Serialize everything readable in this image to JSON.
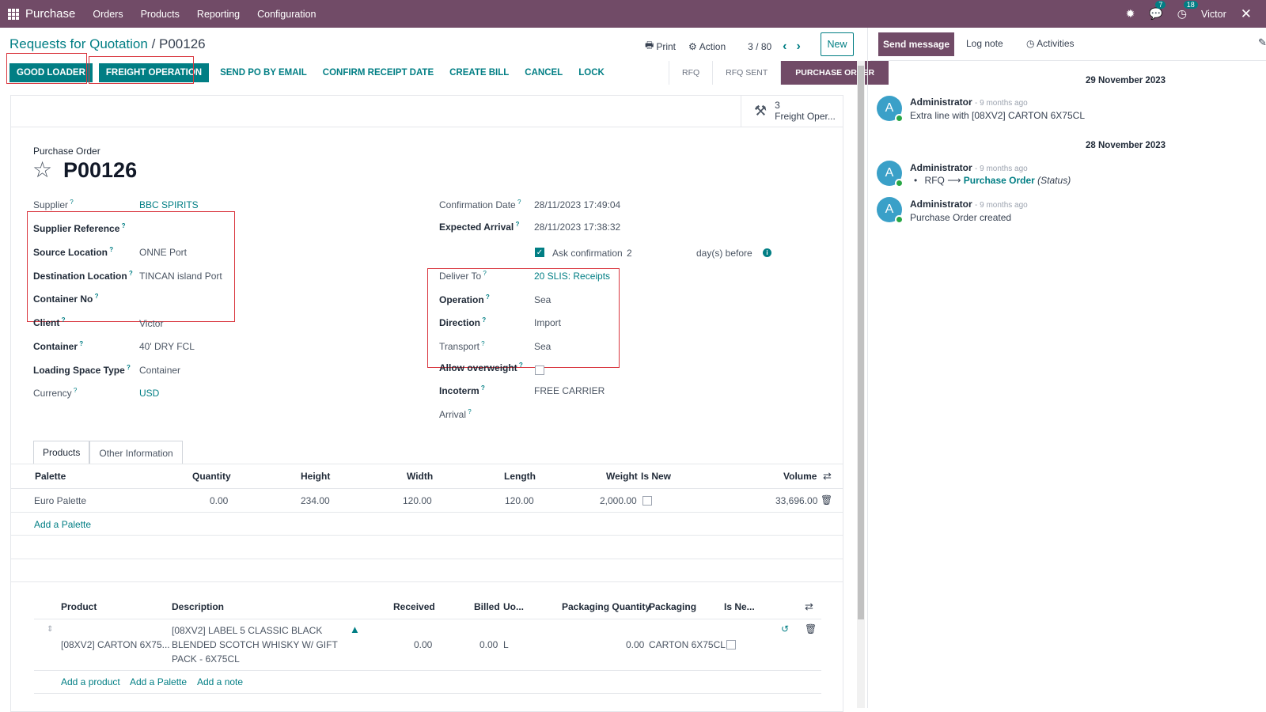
{
  "topbar": {
    "app_name": "Purchase",
    "menus": [
      "Orders",
      "Products",
      "Reporting",
      "Configuration"
    ],
    "chat_count": "7",
    "activity_count": "18",
    "user": "Victor"
  },
  "breadcrumb": {
    "parent": "Requests for Quotation",
    "current": "P00126"
  },
  "toolbar": {
    "print": "Print",
    "action": "Action",
    "pager": "3 / 80",
    "new": "New"
  },
  "actions": {
    "good_loader": "GOOD LOADER",
    "freight_operation": "FREIGHT OPERATION",
    "send_po": "SEND PO BY EMAIL",
    "confirm_receipt": "CONFIRM RECEIPT DATE",
    "create_bill": "CREATE BILL",
    "cancel": "CANCEL",
    "lock": "LOCK"
  },
  "statusbar": {
    "rfq": "RFQ",
    "rfq_sent": "RFQ SENT",
    "purchase_order": "PURCHASE ORDER"
  },
  "smart_button": {
    "count": "3",
    "label": "Freight Oper..."
  },
  "form": {
    "doc_type": "Purchase Order",
    "name": "P00126",
    "left": {
      "supplier_label": "Supplier",
      "supplier": "BBC SPIRITS",
      "supplier_ref_label": "Supplier Reference",
      "source_label": "Source Location",
      "source": "ONNE Port",
      "dest_label": "Destination Location",
      "dest": "TINCAN island Port",
      "container_no_label": "Container No",
      "client_label": "Client",
      "client": "Victor",
      "container_label": "Container",
      "container": "40' DRY FCL",
      "loading_label": "Loading Space Type",
      "loading": "Container",
      "currency_label": "Currency",
      "currency": "USD"
    },
    "right": {
      "confirm_date_label": "Confirmation Date",
      "confirm_date": "28/11/2023 17:49:04",
      "expected_label": "Expected Arrival",
      "expected": "28/11/2023 17:38:32",
      "ask_confirm": "Ask confirmation",
      "ask_days": "2",
      "days_before": "day(s) before",
      "deliver_label": "Deliver To",
      "deliver": "20 SLIS: Receipts",
      "operation_label": "Operation",
      "operation": "Sea",
      "direction_label": "Direction",
      "direction": "Import",
      "transport_label": "Transport",
      "transport": "Sea",
      "overweight_label": "Allow overweight",
      "incoterm_label": "Incoterm",
      "incoterm": "FREE CARRIER",
      "arrival_label": "Arrival"
    }
  },
  "tabs": {
    "products": "Products",
    "other": "Other Information"
  },
  "palette_table": {
    "headers": {
      "palette": "Palette",
      "quantity": "Quantity",
      "height": "Height",
      "width": "Width",
      "length": "Length",
      "weight": "Weight",
      "is_new": "Is New",
      "volume": "Volume"
    },
    "row": {
      "palette": "Euro Palette",
      "quantity": "0.00",
      "height": "234.00",
      "width": "120.00",
      "length": "120.00",
      "weight": "2,000.00",
      "volume": "33,696.00"
    },
    "add": "Add a Palette"
  },
  "product_table": {
    "headers": {
      "product": "Product",
      "description": "Description",
      "received": "Received",
      "billed": "Billed",
      "uom": "Uo...",
      "pkg_qty": "Packaging Quantity",
      "packaging": "Packaging",
      "is_new": "Is Ne..."
    },
    "row": {
      "product": "[08XV2] CARTON 6X75...",
      "desc1": "[08XV2] LABEL 5 CLASSIC BLACK",
      "desc2": "BLENDED SCOTCH WHISKY W/ GIFT",
      "desc3": "PACK - 6X75CL",
      "received": "0.00",
      "billed": "0.00",
      "uom": "L",
      "pkg_qty": "0.00",
      "packaging": "CARTON 6X75CL"
    },
    "add_product": "Add a product",
    "add_palette": "Add a Palette",
    "add_note": "Add a note"
  },
  "chatter": {
    "send": "Send message",
    "log": "Log note",
    "activities": "Activities",
    "date1": "29 November 2023",
    "date2": "28 November 2023",
    "messages": [
      {
        "author": "Administrator",
        "ago": "- 9 months ago",
        "text": "Extra line with [08XV2] CARTON 6X75CL"
      },
      {
        "author": "Administrator",
        "ago": "- 9 months ago",
        "from": "RFQ",
        "to": "Purchase Order",
        "field": "(Status)"
      },
      {
        "author": "Administrator",
        "ago": "- 9 months ago",
        "text": "Purchase Order created"
      }
    ]
  }
}
